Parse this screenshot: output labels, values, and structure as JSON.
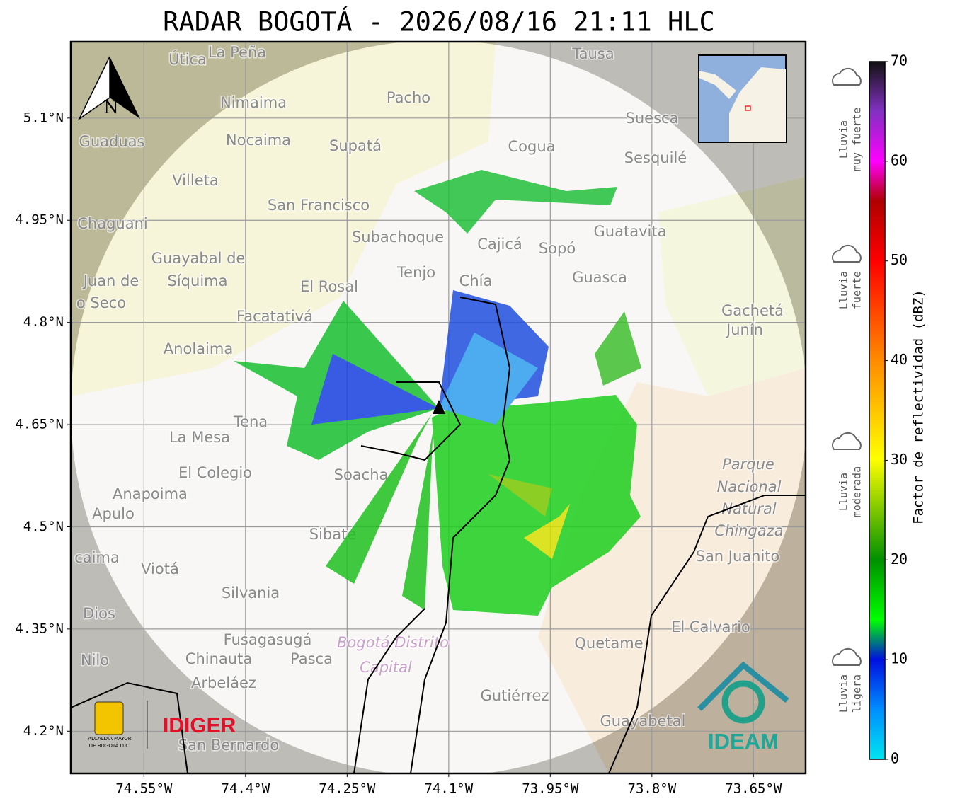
{
  "chart_data": {
    "type": "radar-map",
    "title": "RADAR BOGOTÁ - 2026/08/16 21:11 HLC",
    "xlim": [
      -74.658,
      -73.573
    ],
    "ylim": [
      4.138,
      5.212
    ],
    "xticks": [
      {
        "value": -74.55,
        "label": "74.55°W"
      },
      {
        "value": -74.4,
        "label": "74.4°W"
      },
      {
        "value": -74.25,
        "label": "74.25°W"
      },
      {
        "value": -74.1,
        "label": "74.1°W"
      },
      {
        "value": -73.95,
        "label": "73.95°W"
      },
      {
        "value": -73.8,
        "label": "73.8°W"
      },
      {
        "value": -73.65,
        "label": "73.65°W"
      }
    ],
    "yticks": [
      {
        "value": 5.1,
        "label": "5.1°N"
      },
      {
        "value": 4.95,
        "label": "4.95°N"
      },
      {
        "value": 4.8,
        "label": "4.8°N"
      },
      {
        "value": 4.65,
        "label": "4.65°N"
      },
      {
        "value": 4.5,
        "label": "4.5°N"
      },
      {
        "value": 4.35,
        "label": "4.35°N"
      },
      {
        "value": 4.2,
        "label": "4.2°N"
      }
    ],
    "grid": true,
    "north_label": "N",
    "places": [
      "Útica",
      "La Peña",
      "Tausa",
      "Nimaima",
      "Pacho",
      "Suesca",
      "Guaduas",
      "Nocaima",
      "Supatá",
      "Cogua",
      "Sesquilé",
      "Villeta",
      "San Francisco",
      "Chaguani",
      "Subachoque",
      "Cajicá",
      "Sopó",
      "Guatavita",
      "Guayabal de",
      "Síquima",
      "Juan de",
      "Tenjo",
      "Chía",
      "Guasca",
      "El Rosal",
      "o Seco",
      "Gachetá",
      "Junín",
      "Facatativá",
      "Anolaima",
      "Tena",
      "La Mesa",
      "Parque",
      "El Colegio",
      "Nacional",
      "Anapoima",
      "Natural",
      "Apulo",
      "Chingaza",
      "San Juanito",
      "caima",
      "Viotá",
      "Silvania",
      "Dios",
      "El Calvario",
      "Fusagasugá",
      "Bogotá Distrito",
      "Quetame",
      "Capital",
      "Nilo",
      "Chinauta",
      "Pasca",
      "Arbeláez",
      "Gutiérrez",
      "Guayabetal",
      "San Bernardo",
      "Soacha",
      "Sibaté"
    ],
    "logos": {
      "alcaldia": [
        "ALCALDÍA MAYOR",
        "DE BOGOTÁ D.C."
      ],
      "idiger": "IDIGER",
      "ideam": "IDEAM"
    }
  },
  "colorbar": {
    "label": "Factor de reflectividad (dBZ)",
    "ylim": [
      0,
      70
    ],
    "yticks": [
      0,
      10,
      20,
      30,
      40,
      50,
      60,
      70
    ]
  },
  "legend": [
    {
      "lines": [
        "Lluvia",
        "muy fuerte"
      ]
    },
    {
      "lines": [
        "Lluvia",
        "fuerte"
      ]
    },
    {
      "lines": [
        "Lluvia",
        "moderada"
      ]
    },
    {
      "lines": [
        "Lluvia",
        "ligera"
      ]
    }
  ]
}
